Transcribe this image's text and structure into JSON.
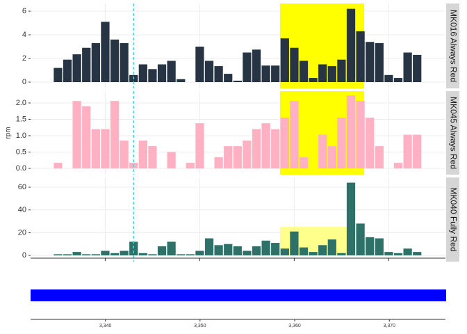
{
  "chart_data": [
    {
      "type": "bar",
      "strip": "MK016 Always Red",
      "color": "#273444",
      "x": [
        3335,
        3336,
        3337,
        3338,
        3339,
        3340,
        3341,
        3342,
        3343,
        3344,
        3345,
        3346,
        3347,
        3348,
        3349,
        3350,
        3351,
        3352,
        3353,
        3354,
        3355,
        3356,
        3357,
        3358,
        3359,
        3360,
        3361,
        3362,
        3363,
        3364,
        3365,
        3366,
        3367,
        3368,
        3369,
        3370,
        3371,
        3372,
        3373
      ],
      "values": [
        1.2,
        1.9,
        2.35,
        2.9,
        3.3,
        5.1,
        3.6,
        3.3,
        0.6,
        1.5,
        1.1,
        1.5,
        1.8,
        0.25,
        null,
        3.0,
        1.8,
        1.35,
        0.7,
        0.12,
        2.5,
        2.75,
        1.4,
        1.4,
        3.7,
        2.9,
        1.8,
        0.35,
        1.5,
        1.35,
        1.9,
        6.2,
        4.3,
        3.4,
        3.3,
        0.6,
        0.35,
        2.5,
        2.3
      ],
      "xlim": [
        3332.1,
        3376.0
      ],
      "ylim": [
        -0.53,
        6.65
      ],
      "yticks": [
        0,
        2,
        4,
        6
      ],
      "xticks": [
        3340,
        3350,
        3360,
        3370
      ],
      "highlight": {
        "x": [
          3358.5,
          3367.4
        ],
        "color": "#ffff00"
      },
      "vline": 3343,
      "vline_color": "#3fd8e8",
      "grid": true
    },
    {
      "type": "bar",
      "strip": "MK045 Always Red",
      "ylabel": "rpm",
      "color": "#ffb1c3",
      "x": [
        3335,
        3336,
        3337,
        3338,
        3339,
        3340,
        3341,
        3342,
        3343,
        3344,
        3345,
        3346,
        3347,
        3348,
        3349,
        3350,
        3351,
        3352,
        3353,
        3354,
        3355,
        3356,
        3357,
        3358,
        3359,
        3360,
        3361,
        3362,
        3363,
        3364,
        3365,
        3366,
        3367,
        3368,
        3369,
        3370,
        3371,
        3372,
        3373
      ],
      "values": [
        0.17,
        null,
        2.06,
        1.9,
        1.2,
        1.2,
        2.06,
        0.85,
        0.17,
        0.85,
        0.68,
        null,
        0.5,
        null,
        0.17,
        1.38,
        null,
        0.34,
        0.68,
        0.68,
        0.85,
        1.2,
        1.38,
        1.2,
        1.55,
        2.06,
        0.34,
        null,
        1.03,
        0.68,
        1.55,
        2.23,
        2.06,
        1.55,
        0.68,
        null,
        0.17,
        1.03,
        1.03
      ],
      "xlim": [
        3332.1,
        3376.0
      ],
      "ylim": [
        -0.19,
        2.36
      ],
      "yticks": [
        {
          "value": 0,
          "label": "0.0"
        },
        {
          "value": 0.5,
          "label": "0.5"
        },
        {
          "value": 1,
          "label": "1.0"
        },
        {
          "value": 1.5,
          "label": "1.5"
        },
        {
          "value": 2,
          "label": "2.0"
        }
      ],
      "xticks": [
        3340,
        3350,
        3360,
        3370
      ],
      "highlight": {
        "x": [
          3358.5,
          3367.4
        ],
        "color": "#ffff00"
      },
      "vline": 3343,
      "vline_color": "#3fd8e8",
      "grid": true
    },
    {
      "type": "bar",
      "strip": "MK040 Fully Red",
      "color": "#2e7168",
      "x": [
        3335,
        3336,
        3337,
        3338,
        3339,
        3340,
        3341,
        3342,
        3343,
        3344,
        3345,
        3346,
        3347,
        3348,
        3349,
        3350,
        3351,
        3352,
        3353,
        3354,
        3355,
        3356,
        3357,
        3358,
        3359,
        3360,
        3361,
        3362,
        3363,
        3364,
        3365,
        3366,
        3367,
        3368,
        3369,
        3370,
        3371,
        3372,
        3373
      ],
      "values": [
        1,
        1,
        3,
        1,
        1,
        4,
        2,
        4,
        12,
        2,
        1,
        8,
        12,
        1,
        1,
        4,
        15,
        9,
        10,
        8,
        4,
        8,
        13,
        11,
        6,
        21,
        7,
        3,
        9,
        14,
        2,
        64,
        28,
        16,
        15,
        3,
        2,
        6,
        3
      ],
      "xlim": [
        3332.1,
        3376.0
      ],
      "ylim": [
        -5.5,
        68.6
      ],
      "yticks": [
        0,
        20,
        40,
        60
      ],
      "xticks": [
        3340,
        3350,
        3360,
        3370
      ],
      "highlight": {
        "x": [
          3358.5,
          3365.6
        ],
        "y": [
          0,
          25
        ],
        "color": "#ffff8c"
      },
      "vline": 3343,
      "vline_color": "#3fd8e8",
      "grid": true
    },
    {
      "type": "track",
      "color": "#0000ff",
      "x": [
        3332.1,
        3376.0
      ],
      "xlim": [
        3332.1,
        3376.0
      ],
      "xticks": [
        {
          "value": 3340,
          "label": "3,340"
        },
        {
          "value": 3350,
          "label": "3,350"
        },
        {
          "value": 3360,
          "label": "3,360"
        },
        {
          "value": 3370,
          "label": "3,370"
        }
      ]
    }
  ]
}
